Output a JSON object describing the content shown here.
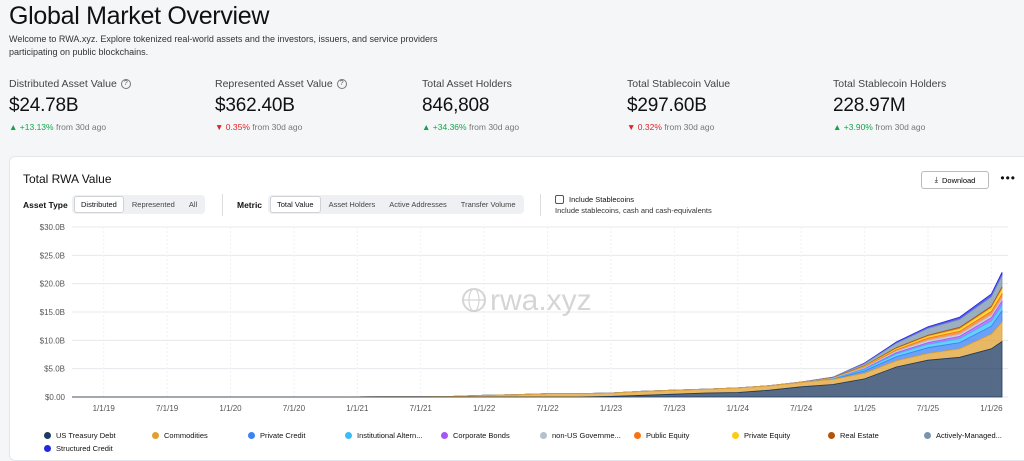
{
  "page": {
    "title": "Global Market Overview",
    "subtitle": "Welcome to RWA.xyz. Explore tokenized real-world assets and the investors, issuers, and service providers participating on public blockchains."
  },
  "stats": [
    {
      "label": "Distributed Asset Value",
      "value": "$24.78B",
      "change": "+13.13%",
      "direction": "up",
      "period": "from 30d ago",
      "info": true
    },
    {
      "label": "Represented Asset Value",
      "value": "$362.40B",
      "change": "0.35%",
      "direction": "down",
      "period": "from 30d ago",
      "info": true
    },
    {
      "label": "Total Asset Holders",
      "value": "846,808",
      "change": "+34.36%",
      "direction": "up",
      "period": "from 30d ago",
      "info": false
    },
    {
      "label": "Total Stablecoin Value",
      "value": "$297.60B",
      "change": "0.32%",
      "direction": "down",
      "period": "from 30d ago",
      "info": false
    },
    {
      "label": "Total Stablecoin Holders",
      "value": "228.97M",
      "change": "+3.90%",
      "direction": "up",
      "period": "from 30d ago",
      "info": false
    }
  ],
  "card": {
    "title": "Total RWA Value",
    "download_label": "Download",
    "more_label": "•••",
    "asset_type_label": "Asset Type",
    "asset_type_options": [
      "Distributed",
      "Represented",
      "All"
    ],
    "asset_type_selected": "Distributed",
    "metric_label": "Metric",
    "metric_options": [
      "Total Value",
      "Asset Holders",
      "Active Addresses",
      "Transfer Volume"
    ],
    "metric_selected": "Total Value",
    "stablecoin_checkbox_label": "Include Stablecoins",
    "stablecoin_checkbox_desc": "Include stablecoins, cash and cash-equivalents",
    "stablecoin_checked": false,
    "watermark": "rwa.xyz"
  },
  "chart_data": {
    "type": "area",
    "stacked": true,
    "y_ticks": [
      "$30.0B",
      "$25.0B",
      "$20.0B",
      "$15.0B",
      "$10.0B",
      "$5.0B",
      "$0.00"
    ],
    "ylim": [
      0,
      30
    ],
    "x_ticks": [
      "1/1/19",
      "7/1/19",
      "1/1/20",
      "7/1/20",
      "1/1/21",
      "7/1/21",
      "1/1/22",
      "7/1/22",
      "1/1/23",
      "7/1/23",
      "1/1/24",
      "7/1/24",
      "1/1/25",
      "7/1/25",
      "1/1/26"
    ],
    "x": [
      "2018-10",
      "2019-01",
      "2019-07",
      "2020-01",
      "2020-07",
      "2021-01",
      "2021-04",
      "2021-07",
      "2021-10",
      "2022-01",
      "2022-04",
      "2022-07",
      "2022-10",
      "2023-01",
      "2023-04",
      "2023-07",
      "2023-10",
      "2024-01",
      "2024-04",
      "2024-07",
      "2024-10",
      "2025-01",
      "2025-04",
      "2025-07",
      "2025-10",
      "2026-01",
      "2026-02"
    ],
    "grid": true,
    "legend_position": "bottom",
    "series": [
      {
        "name": "US Treasury Debt",
        "color": "#1e3a5f",
        "values": [
          0,
          0,
          0,
          0,
          0,
          0,
          0,
          0,
          0,
          0,
          0,
          0,
          0,
          0.1,
          0.3,
          0.5,
          0.7,
          0.8,
          1.2,
          1.8,
          2.2,
          3.2,
          5.3,
          6.5,
          7.0,
          8.5,
          9.8
        ]
      },
      {
        "name": "Commodities",
        "color": "#e0a030",
        "values": [
          0,
          0,
          0,
          0,
          0,
          0.02,
          0.05,
          0.05,
          0.1,
          0.3,
          0.4,
          0.6,
          0.6,
          0.6,
          0.7,
          0.7,
          0.7,
          0.8,
          0.8,
          0.8,
          0.9,
          1.0,
          1.1,
          1.2,
          1.5,
          2.6,
          3.4
        ]
      },
      {
        "name": "Private Credit",
        "color": "#3b82f6",
        "values": [
          0,
          0,
          0,
          0,
          0,
          0,
          0,
          0,
          0,
          0,
          0,
          0,
          0,
          0,
          0,
          0,
          0,
          0,
          0,
          0,
          0,
          0.4,
          0.7,
          1.0,
          1.1,
          1.4,
          2.0
        ]
      },
      {
        "name": "Institutional Altern...",
        "color": "#38bdf8",
        "values": [
          0,
          0,
          0,
          0,
          0,
          0,
          0,
          0,
          0,
          0,
          0,
          0,
          0,
          0,
          0,
          0,
          0,
          0,
          0,
          0,
          0.1,
          0.3,
          0.5,
          0.6,
          0.7,
          0.9,
          1.0
        ]
      },
      {
        "name": "Corporate Bonds",
        "color": "#a855f7",
        "values": [
          0,
          0,
          0,
          0,
          0,
          0,
          0,
          0,
          0,
          0,
          0,
          0,
          0,
          0,
          0,
          0,
          0,
          0,
          0,
          0,
          0,
          0.1,
          0.2,
          0.3,
          0.4,
          0.6,
          0.7
        ]
      },
      {
        "name": "non-US Governme...",
        "color": "#b8c0cc",
        "values": [
          0,
          0,
          0,
          0,
          0,
          0,
          0,
          0,
          0,
          0,
          0,
          0,
          0,
          0,
          0,
          0,
          0,
          0,
          0,
          0,
          0.1,
          0.2,
          0.3,
          0.4,
          0.4,
          0.5,
          0.5
        ]
      },
      {
        "name": "Public Equity",
        "color": "#f97316",
        "values": [
          0,
          0,
          0,
          0,
          0,
          0,
          0,
          0,
          0,
          0,
          0,
          0,
          0,
          0,
          0,
          0,
          0,
          0,
          0,
          0,
          0,
          0.1,
          0.2,
          0.4,
          0.5,
          0.6,
          0.8
        ]
      },
      {
        "name": "Private Equity",
        "color": "#facc15",
        "values": [
          0,
          0,
          0,
          0,
          0,
          0,
          0,
          0,
          0,
          0,
          0,
          0,
          0,
          0,
          0,
          0,
          0,
          0,
          0,
          0,
          0,
          0.1,
          0.2,
          0.3,
          0.4,
          0.6,
          0.8
        ]
      },
      {
        "name": "Real Estate",
        "color": "#b45309",
        "values": [
          0,
          0,
          0,
          0,
          0,
          0,
          0,
          0,
          0,
          0,
          0,
          0,
          0,
          0,
          0,
          0,
          0,
          0,
          0,
          0.05,
          0.1,
          0.1,
          0.2,
          0.2,
          0.3,
          0.3,
          0.4
        ]
      },
      {
        "name": "Actively-Managed...",
        "color": "#7a94ad",
        "values": [
          0,
          0,
          0,
          0,
          0,
          0,
          0,
          0,
          0,
          0,
          0,
          0,
          0,
          0,
          0,
          0,
          0,
          0,
          0,
          0,
          0.1,
          0.4,
          0.8,
          1.2,
          1.4,
          1.7,
          2.0
        ]
      },
      {
        "name": "Structured Credit",
        "color": "#2525e8",
        "values": [
          0,
          0,
          0,
          0,
          0,
          0,
          0,
          0,
          0,
          0,
          0,
          0,
          0,
          0,
          0,
          0,
          0,
          0,
          0,
          0,
          0,
          0.1,
          0.2,
          0.3,
          0.4,
          0.5,
          0.6
        ]
      }
    ]
  }
}
